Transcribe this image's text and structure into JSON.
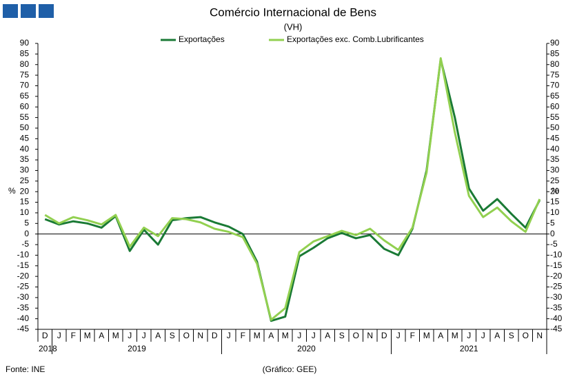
{
  "chart_data": {
    "type": "line",
    "title": "Comércio Internacional de Bens",
    "subtitle": "(VH)",
    "ylabel": "%",
    "y2label": "%",
    "source": "Fonte: INE",
    "note": "(Gráfico: GEE)",
    "categories": [
      "D",
      "J",
      "F",
      "M",
      "A",
      "M",
      "J",
      "J",
      "A",
      "S",
      "O",
      "N",
      "D",
      "J",
      "F",
      "M",
      "A",
      "M",
      "J",
      "J",
      "A",
      "S",
      "O",
      "N",
      "D",
      "J",
      "F",
      "M",
      "A",
      "M",
      "J",
      "J",
      "A",
      "S",
      "O",
      "N"
    ],
    "year_groups": [
      {
        "label": "2018",
        "count": 1
      },
      {
        "label": "2019",
        "count": 12
      },
      {
        "label": "2020",
        "count": 12
      },
      {
        "label": "2021",
        "count": 11
      }
    ],
    "series": [
      {
        "name": "Exportações",
        "color": "#1a7a35",
        "values": [
          7,
          4.5,
          6,
          5,
          3,
          8.5,
          -8,
          2,
          -5,
          6.5,
          7.5,
          8,
          5.5,
          3.5,
          0,
          -13,
          -41,
          -39,
          -10.5,
          -6.5,
          -2,
          0.5,
          -2,
          -0.5,
          -7,
          -10,
          2.5,
          30,
          82.5,
          55,
          21.5,
          11,
          16.5,
          9.5,
          3,
          16
        ]
      },
      {
        "name": "Exportações exc. Comb.Lubrificantes",
        "color": "#92d050",
        "values": [
          9,
          5,
          8,
          6.5,
          4.5,
          9,
          -6,
          3,
          -1,
          7.5,
          7,
          5.5,
          2.5,
          1,
          -1.5,
          -14,
          -40.5,
          -35,
          -8.5,
          -3.5,
          -1,
          1.5,
          -0.5,
          2.5,
          -3,
          -7.5,
          3,
          29,
          83,
          48,
          18,
          8,
          12.5,
          6,
          1,
          16.5
        ]
      }
    ],
    "ylim": [
      -45,
      90
    ],
    "yticks": [
      -45,
      -40,
      -35,
      -30,
      -25,
      -20,
      -15,
      -10,
      -5,
      0,
      5,
      10,
      15,
      20,
      25,
      30,
      35,
      40,
      45,
      50,
      55,
      60,
      65,
      70,
      75,
      80,
      85,
      90
    ],
    "y2lim": [
      -45,
      90
    ],
    "y2ticks": [
      -45,
      -40,
      -35,
      -30,
      -25,
      -20,
      -15,
      -10,
      -5,
      0,
      5,
      10,
      15,
      20,
      25,
      30,
      35,
      40,
      45,
      50,
      55,
      60,
      65,
      70,
      75,
      80,
      85,
      90
    ]
  }
}
